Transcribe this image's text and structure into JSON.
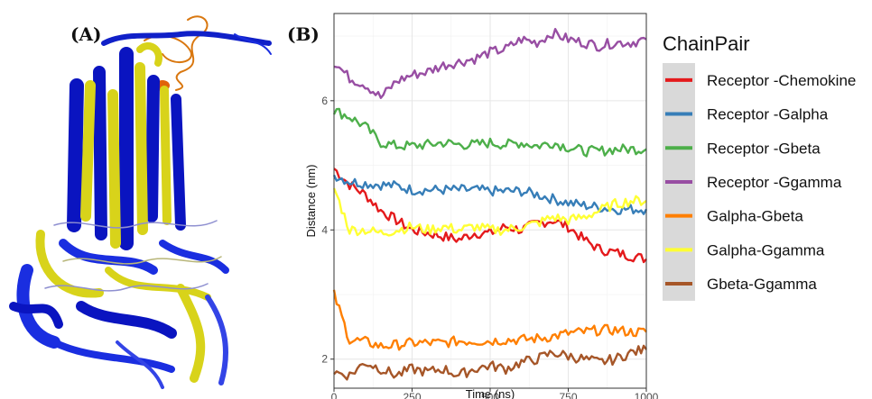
{
  "panel_a": {
    "label": "(A)",
    "image_description_name": "protein-structure-overlay"
  },
  "panel_b": {
    "label": "(B)"
  },
  "chart_data": {
    "type": "line",
    "title": "",
    "xlabel": "Time (ns)",
    "ylabel": "Distance (nm)",
    "xlim": [
      0,
      1000
    ],
    "ylim": [
      1.55,
      7.35
    ],
    "x_ticks": [
      0,
      250,
      500,
      750,
      1000
    ],
    "y_ticks": [
      2,
      4,
      6
    ],
    "grid": true,
    "legend_title": "ChainPair",
    "legend_position": "right",
    "x": [
      0,
      50,
      100,
      150,
      200,
      250,
      300,
      350,
      400,
      450,
      500,
      550,
      600,
      650,
      700,
      750,
      800,
      850,
      900,
      950,
      1000
    ],
    "series": [
      {
        "name": "Receptor -Chemokine",
        "color": "#e41a1c",
        "values": [
          4.95,
          4.7,
          4.55,
          4.3,
          4.15,
          4.0,
          3.95,
          3.9,
          3.85,
          3.95,
          3.95,
          4.05,
          4.0,
          4.1,
          4.15,
          4.05,
          3.85,
          3.7,
          3.65,
          3.6,
          3.55
        ]
      },
      {
        "name": "Receptor -Galpha",
        "color": "#377eb8",
        "values": [
          4.85,
          4.75,
          4.72,
          4.7,
          4.68,
          4.62,
          4.62,
          4.62,
          4.62,
          4.62,
          4.6,
          4.6,
          4.6,
          4.55,
          4.48,
          4.42,
          4.38,
          4.35,
          4.32,
          4.32,
          4.32
        ]
      },
      {
        "name": "Receptor -Gbeta",
        "color": "#4daf4a",
        "values": [
          5.85,
          5.75,
          5.6,
          5.35,
          5.3,
          5.3,
          5.32,
          5.35,
          5.32,
          5.32,
          5.35,
          5.32,
          5.35,
          5.3,
          5.35,
          5.28,
          5.22,
          5.22,
          5.25,
          5.25,
          5.25
        ]
      },
      {
        "name": "Receptor -Ggamma",
        "color": "#984ea3",
        "values": [
          6.6,
          6.35,
          6.25,
          6.05,
          6.3,
          6.4,
          6.45,
          6.55,
          6.6,
          6.65,
          6.75,
          6.8,
          6.95,
          6.9,
          7.05,
          6.95,
          6.9,
          6.85,
          6.9,
          6.9,
          6.95
        ]
      },
      {
        "name": "Galpha-Gbeta",
        "color": "#ff7f00",
        "values": [
          3.0,
          2.3,
          2.27,
          2.2,
          2.22,
          2.25,
          2.25,
          2.25,
          2.28,
          2.28,
          2.28,
          2.3,
          2.3,
          2.32,
          2.35,
          2.4,
          2.42,
          2.45,
          2.45,
          2.42,
          2.42
        ]
      },
      {
        "name": "Galpha-Ggamma",
        "color": "#ffff33",
        "values": [
          4.65,
          4.0,
          4.0,
          3.95,
          4.0,
          4.05,
          4.0,
          4.05,
          4.0,
          4.05,
          4.0,
          4.0,
          4.05,
          4.1,
          4.2,
          4.15,
          4.2,
          4.3,
          4.4,
          4.45,
          4.45
        ]
      },
      {
        "name": "Gbeta-Ggamma",
        "color": "#a65628",
        "values": [
          1.8,
          1.75,
          1.95,
          1.85,
          1.75,
          1.85,
          1.8,
          1.85,
          1.75,
          1.85,
          1.9,
          1.85,
          1.95,
          2.0,
          2.1,
          2.05,
          2.0,
          1.95,
          2.0,
          2.1,
          2.15
        ]
      }
    ]
  }
}
